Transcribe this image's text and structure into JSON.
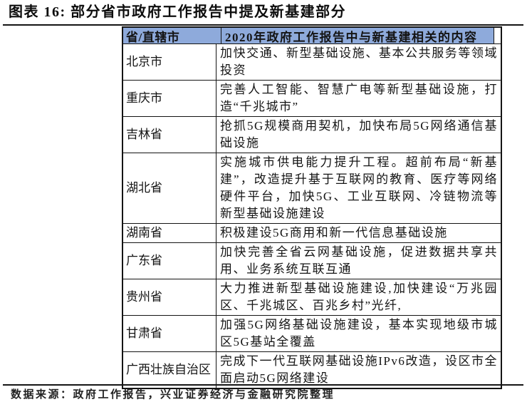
{
  "title": "图表 16: 部分省市政府工作报告中提及新基建部分",
  "table": {
    "headers": [
      "省/直辖市",
      "2020年政府工作报告中与新基建相关的内容"
    ],
    "rows": [
      {
        "province": "北京市",
        "content": "加快交通、新型基础设施、基本公共服务等领域投资"
      },
      {
        "province": "重庆市",
        "content": "完善人工智能、智慧广电等新型基础设施，打造“千兆城市”"
      },
      {
        "province": "吉林省",
        "content": "抢抓5G规模商用契机，加快布局5G网络通信基础设施"
      },
      {
        "province": "湖北省",
        "content": "实施城市供电能力提升工程。超前布局“新基建”，改造提升基于互联网的教育、医疗等网络硬件平台，加快5G、工业互联网、冷链物流等新型基础设施建设"
      },
      {
        "province": "湖南省",
        "content": "积极建设5G商用和新一代信息基础设施"
      },
      {
        "province": "广东省",
        "content": "加快完善全省云网基础设施，促进数据共享共用、业务系统互联互通"
      },
      {
        "province": "贵州省",
        "content": "大力推进新型基础设施建设,加快建设“万兆园区、千兆城区、百兆乡村”光纤,"
      },
      {
        "province": "甘肃省",
        "content": "加强5G网络基础设施建设，基本实现地级市城区5G基站全覆盖"
      },
      {
        "province": "广西壮族自治区",
        "content": "完成下一代互联网基础设施IPv6改造，设区市全面启动5G网络建设"
      }
    ]
  },
  "footer": {
    "source": "数据来源：政府工作报告，兴业证券经济与金融研究院整理"
  },
  "colors": {
    "header_bg": "#8EAADB",
    "border": "#141414",
    "text": "#141414"
  }
}
